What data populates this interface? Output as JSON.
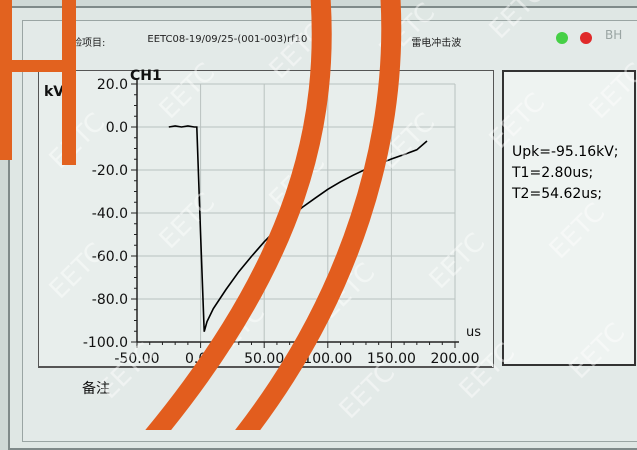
{
  "header": {
    "label": "试验项目:",
    "id": "EETC08-19/09/25-(001-003)rf10",
    "waveform": "雷电冲击波",
    "corner": "BH"
  },
  "indicators": {
    "green": "#46d046",
    "red": "#e02a2a"
  },
  "channel": "CH1",
  "readout": {
    "upk": "Upk=-95.16kV;",
    "t1": "T1=2.80us;",
    "t2": "T2=54.62us;"
  },
  "remark_label": "备注",
  "watermark": "EETC",
  "chart_data": {
    "type": "line",
    "title": "CH1",
    "xlabel": "us",
    "ylabel": "kV",
    "xlim": [
      -50,
      200
    ],
    "ylim": [
      -100,
      20
    ],
    "xticks": [
      "-50.00",
      "0.00",
      "50.00",
      "100.00",
      "150.00",
      "200.00"
    ],
    "yticks": [
      "20.0",
      "0.0",
      "-20.0",
      "-40.0",
      "-60.0",
      "-80.0",
      "-100.0"
    ],
    "grid": true,
    "series": [
      {
        "color": "#000000",
        "x": [
          -25,
          -20,
          -15,
          -10,
          -5,
          -3,
          0,
          2.8,
          5,
          10,
          20,
          30,
          40,
          50,
          60,
          70,
          80,
          90,
          100,
          110,
          120,
          130,
          140,
          150,
          160,
          170,
          178
        ],
        "y": [
          0,
          0.5,
          0,
          0.5,
          0,
          0,
          -50,
          -95.2,
          -90.5,
          -84.5,
          -75.6,
          -67.3,
          -60.2,
          -53.4,
          -47.4,
          -42.3,
          -37.3,
          -33.1,
          -29.0,
          -25.5,
          -22.4,
          -19.6,
          -17.3,
          -14.9,
          -12.8,
          -10.6,
          -6.5
        ]
      }
    ]
  }
}
